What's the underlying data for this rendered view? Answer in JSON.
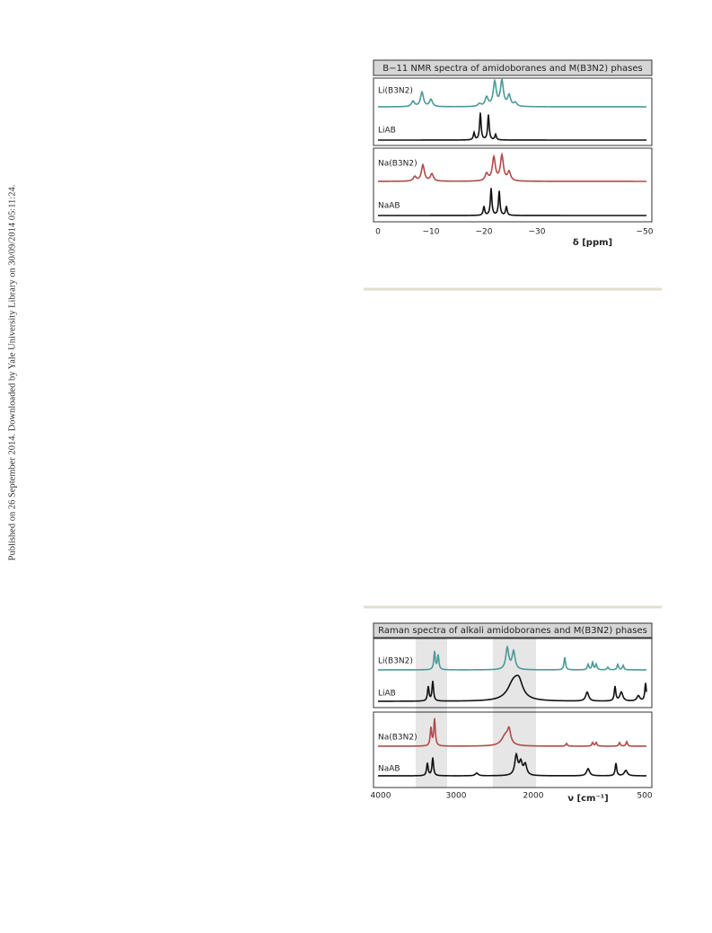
{
  "side_note": "Published on 26 September 2014. Downloaded by Yale University Library on 30/09/2014 05:11:24.",
  "figures": [
    {
      "title": "B−11 NMR spectra of amidoboranes and M(B3N2) phases",
      "traces": [
        "Li(B3N2)",
        "LiAB",
        "Na(B3N2)",
        "NaAB"
      ],
      "axis_ticks": [
        "0",
        "−10",
        "−20",
        "−30",
        "−50"
      ],
      "axis_label": "δ [ppm]"
    },
    {
      "title": "Raman spectra of alkali amidoboranes and M(B3N2) phases",
      "traces": [
        "Li(B3N2)",
        "LiAB",
        "Na(B3N2)",
        "NaAB"
      ],
      "axis_ticks": [
        "4000",
        "3000",
        "2000",
        "500"
      ],
      "axis_label": "ν [cm⁻¹]"
    }
  ]
}
